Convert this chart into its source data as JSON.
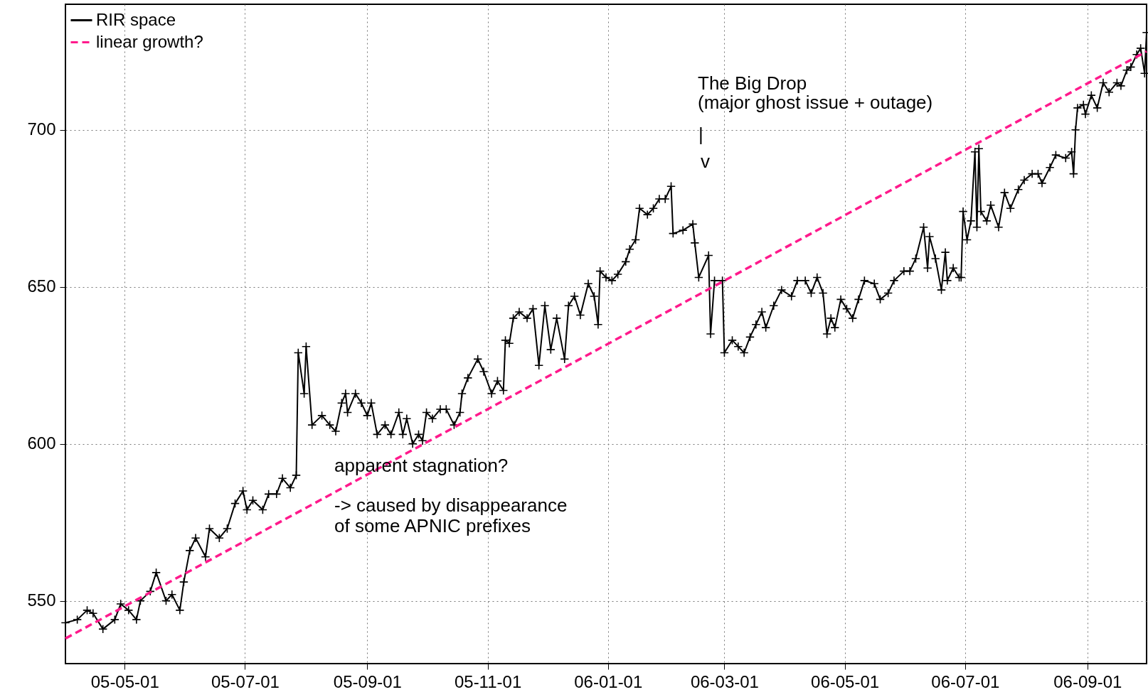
{
  "chart_data": {
    "type": "line",
    "xlim": [
      "2005-04-01",
      "2006-10-01"
    ],
    "ylim": [
      530,
      740
    ],
    "xticks": [
      {
        "value": "2005-05-01",
        "label": "05-05-01"
      },
      {
        "value": "2005-07-01",
        "label": "05-07-01"
      },
      {
        "value": "2005-09-01",
        "label": "05-09-01"
      },
      {
        "value": "2005-11-01",
        "label": "05-11-01"
      },
      {
        "value": "2006-01-01",
        "label": "06-01-01"
      },
      {
        "value": "2006-03-01",
        "label": "06-03-01"
      },
      {
        "value": "2006-05-01",
        "label": "06-05-01"
      },
      {
        "value": "2006-07-01",
        "label": "06-07-01"
      },
      {
        "value": "2006-09-01",
        "label": "06-09-01"
      }
    ],
    "yticks": [
      550,
      600,
      650,
      700
    ],
    "grid": true,
    "legend": "top left",
    "series": [
      {
        "name": "RIR space",
        "color": "#000000",
        "marker": "cross",
        "x": [
          "2005-04-01",
          "2005-04-07",
          "2005-04-12",
          "2005-04-15",
          "2005-04-20",
          "2005-04-26",
          "2005-04-29",
          "2005-05-03",
          "2005-05-07",
          "2005-05-09",
          "2005-05-14",
          "2005-05-17",
          "2005-05-22",
          "2005-05-25",
          "2005-05-29",
          "2005-05-31",
          "2005-06-03",
          "2005-06-06",
          "2005-06-11",
          "2005-06-13",
          "2005-06-18",
          "2005-06-22",
          "2005-06-26",
          "2005-06-30",
          "2005-07-02",
          "2005-07-05",
          "2005-07-10",
          "2005-07-13",
          "2005-07-17",
          "2005-07-20",
          "2005-07-24",
          "2005-07-27",
          "2005-07-28",
          "2005-07-31",
          "2005-08-01",
          "2005-08-04",
          "2005-08-09",
          "2005-08-13",
          "2005-08-16",
          "2005-08-19",
          "2005-08-21",
          "2005-08-22",
          "2005-08-26",
          "2005-08-29",
          "2005-09-01",
          "2005-09-03",
          "2005-09-06",
          "2005-09-10",
          "2005-09-13",
          "2005-09-17",
          "2005-09-19",
          "2005-09-21",
          "2005-09-24",
          "2005-09-27",
          "2005-09-29",
          "2005-10-01",
          "2005-10-04",
          "2005-10-08",
          "2005-10-11",
          "2005-10-15",
          "2005-10-18",
          "2005-10-19",
          "2005-10-22",
          "2005-10-27",
          "2005-10-30",
          "2005-11-03",
          "2005-11-06",
          "2005-11-09",
          "2005-11-10",
          "2005-11-12",
          "2005-11-14",
          "2005-11-17",
          "2005-11-21",
          "2005-11-24",
          "2005-11-27",
          "2005-11-30",
          "2005-12-03",
          "2005-12-06",
          "2005-12-10",
          "2005-12-12",
          "2005-12-15",
          "2005-12-18",
          "2005-12-22",
          "2005-12-25",
          "2005-12-27",
          "2005-12-28",
          "2005-12-31",
          "2006-01-03",
          "2006-01-06",
          "2006-01-10",
          "2006-01-12",
          "2006-01-15",
          "2006-01-17",
          "2006-01-21",
          "2006-01-24",
          "2006-01-27",
          "2006-01-30",
          "2006-02-02",
          "2006-02-03",
          "2006-02-08",
          "2006-02-13",
          "2006-02-14",
          "2006-02-16",
          "2006-02-21",
          "2006-02-22",
          "2006-02-24",
          "2006-02-28",
          "2006-03-01",
          "2006-03-05",
          "2006-03-08",
          "2006-03-11",
          "2006-03-14",
          "2006-03-17",
          "2006-03-20",
          "2006-03-22",
          "2006-03-26",
          "2006-03-30",
          "2006-04-04",
          "2006-04-07",
          "2006-04-11",
          "2006-04-14",
          "2006-04-17",
          "2006-04-20",
          "2006-04-22",
          "2006-04-24",
          "2006-04-26",
          "2006-04-29",
          "2006-05-02",
          "2006-05-05",
          "2006-05-08",
          "2006-05-11",
          "2006-05-16",
          "2006-05-19",
          "2006-05-23",
          "2006-05-26",
          "2006-05-31",
          "2006-06-03",
          "2006-06-06",
          "2006-06-10",
          "2006-06-12",
          "2006-06-13",
          "2006-06-16",
          "2006-06-19",
          "2006-06-21",
          "2006-06-22",
          "2006-06-25",
          "2006-06-28",
          "2006-06-29",
          "2006-06-30",
          "2006-07-02",
          "2006-07-04",
          "2006-07-06",
          "2006-07-07",
          "2006-07-08",
          "2006-07-09",
          "2006-07-12",
          "2006-07-14",
          "2006-07-18",
          "2006-07-21",
          "2006-07-24",
          "2006-07-28",
          "2006-07-31",
          "2006-08-04",
          "2006-08-07",
          "2006-08-09",
          "2006-08-13",
          "2006-08-16",
          "2006-08-21",
          "2006-08-24",
          "2006-08-25",
          "2006-08-26",
          "2006-08-27",
          "2006-08-30",
          "2006-08-31",
          "2006-09-03",
          "2006-09-06",
          "2006-09-09",
          "2006-09-12",
          "2006-09-16",
          "2006-09-18",
          "2006-09-21",
          "2006-09-23",
          "2006-09-26",
          "2006-09-28",
          "2006-09-30",
          "2006-10-01"
        ],
        "values": [
          543,
          544,
          547,
          546,
          541,
          544,
          549,
          547,
          544,
          550,
          553,
          559,
          550,
          552,
          547,
          556,
          566,
          570,
          564,
          573,
          570,
          573,
          581,
          585,
          579,
          582,
          579,
          584,
          584,
          589,
          586,
          590,
          629,
          616,
          631,
          606,
          609,
          606,
          604,
          613,
          616,
          610,
          616,
          613,
          609,
          613,
          603,
          606,
          603,
          610,
          603,
          608,
          600,
          603,
          601,
          610,
          608,
          611,
          611,
          606,
          610,
          616,
          621,
          627,
          623,
          616,
          620,
          617,
          633,
          632,
          640,
          642,
          640,
          643,
          625,
          644,
          630,
          640,
          627,
          644,
          647,
          641,
          651,
          647,
          638,
          655,
          653,
          652,
          654,
          658,
          662,
          665,
          675,
          673,
          675,
          678,
          678,
          682,
          667,
          668,
          670,
          664,
          653,
          660,
          635,
          652,
          652,
          629,
          633,
          631,
          629,
          634,
          638,
          642,
          637,
          644,
          649,
          647,
          652,
          652,
          648,
          653,
          648,
          635,
          640,
          637,
          646,
          643,
          640,
          646,
          652,
          651,
          646,
          648,
          652,
          655,
          655,
          659,
          669,
          656,
          666,
          659,
          649,
          661,
          652,
          656,
          653,
          653,
          674,
          665,
          671,
          693,
          669,
          694,
          674,
          671,
          676,
          669,
          680,
          675,
          681,
          684,
          686,
          686,
          683,
          688,
          692,
          691,
          693,
          686,
          700,
          707,
          708,
          705,
          711,
          707,
          715,
          712,
          715,
          714,
          719,
          720,
          724,
          726,
          718,
          731
        ]
      },
      {
        "name": "linear growth?",
        "color": "#ff1a8c",
        "line_style": "dashed",
        "x": [
          "2005-04-01",
          "2006-10-01"
        ],
        "values": [
          538,
          725
        ]
      }
    ],
    "annotations": [
      "The Big Drop",
      "(major ghost issue + outage)",
      "|",
      "v",
      "apparent stagnation?",
      "-> caused by disappearance",
      "of some APNIC prefixes"
    ]
  }
}
